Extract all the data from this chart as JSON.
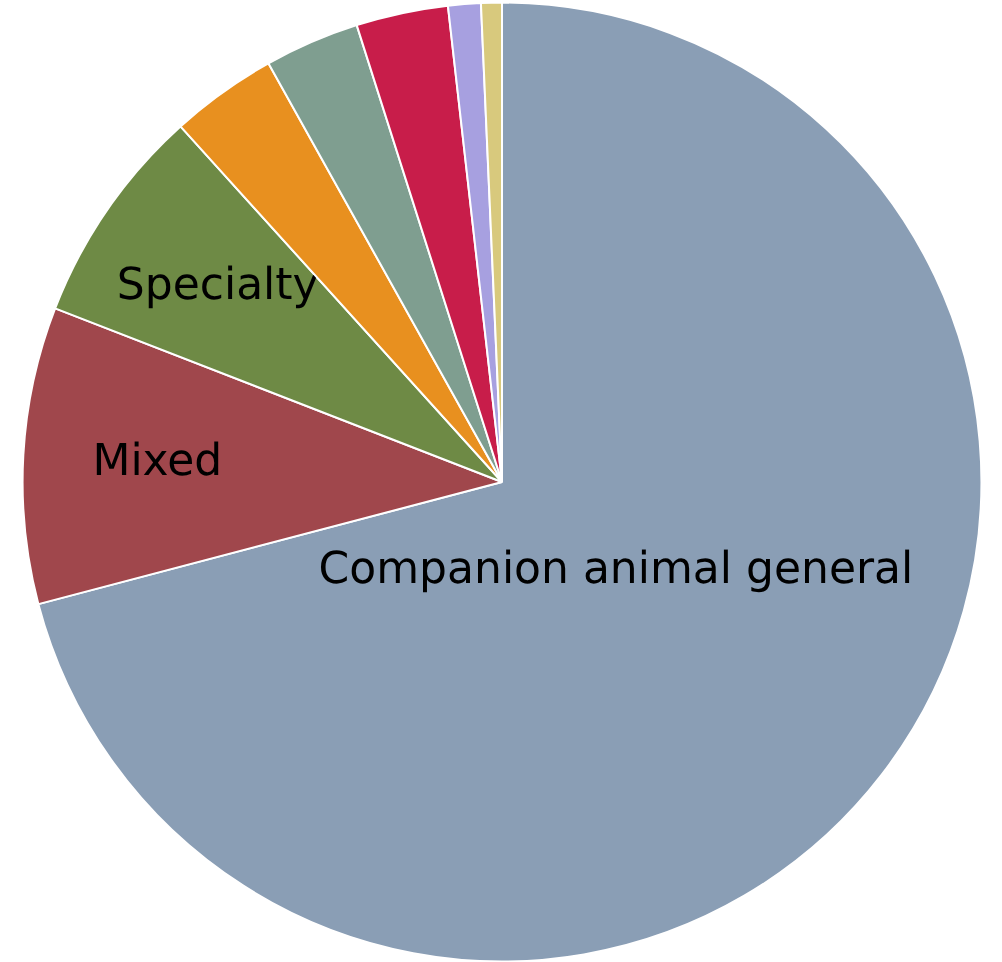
{
  "chart_data": {
    "type": "pie",
    "categories": [
      "Companion animal general",
      "Mixed",
      "Specialty",
      null,
      null,
      null,
      null,
      null
    ],
    "values": [
      70.9,
      10.0,
      7.4,
      3.6,
      3.2,
      3.1,
      1.1,
      0.7
    ],
    "colors": [
      "#8a9eb5",
      "#a0474c",
      "#6e8a45",
      "#e8901f",
      "#7f9e90",
      "#c81d4a",
      "#a7a0e0",
      "#d8c97d"
    ]
  }
}
